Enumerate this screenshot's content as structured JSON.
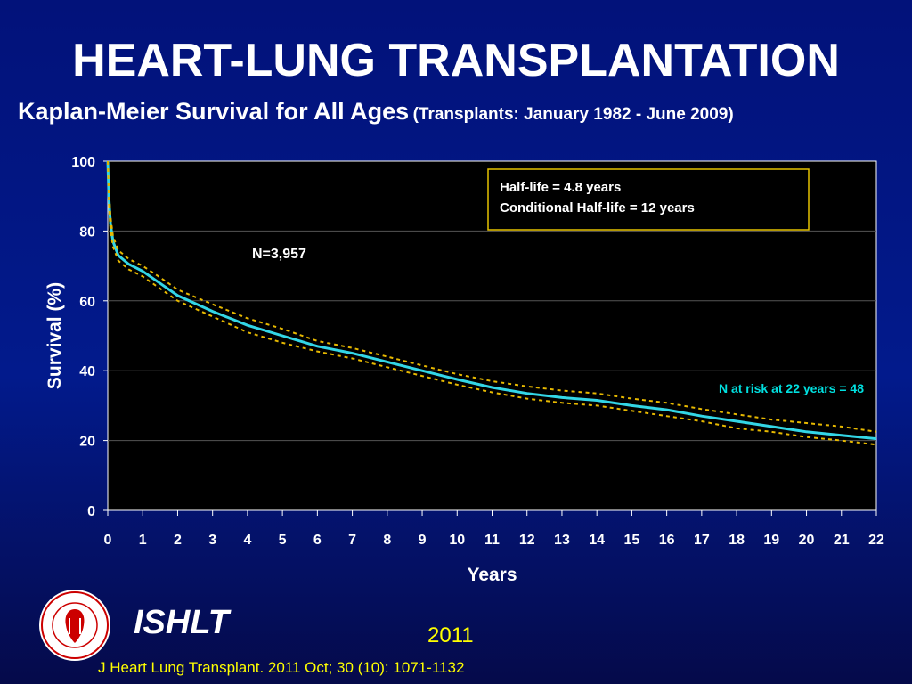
{
  "slide": {
    "title": "HEART-LUNG TRANSPLANTATION",
    "subtitle_main": "Kaplan-Meier Survival for All Ages",
    "subtitle_paren": "(Transplants: January 1982 - June 2009)",
    "org_name": "ISHLT",
    "year": "2011",
    "citation": "J Heart Lung Transplant. 2011 Oct; 30 (10): 1071-1132",
    "logo_text": "INTERNATIONAL SOCIETY FOR HEART & LUNG TRANSPLANTATION",
    "colors": {
      "background": "#021a8c",
      "title": "#ffffff",
      "footer_text": "#ffff00",
      "survival_line": "#33d6e6",
      "ci_line": "#e6b800",
      "note_text": "#00e0e0"
    }
  },
  "chart_data": {
    "type": "line",
    "xlabel": "Years",
    "ylabel": "Survival (%)",
    "xlim": [
      0,
      22
    ],
    "ylim": [
      0,
      100
    ],
    "x_ticks": [
      "0",
      "1",
      "2",
      "3",
      "4",
      "5",
      "6",
      "7",
      "8",
      "9",
      "10",
      "11",
      "12",
      "13",
      "14",
      "15",
      "16",
      "17",
      "18",
      "19",
      "20",
      "21",
      "22"
    ],
    "y_ticks": [
      "0",
      "20",
      "40",
      "60",
      "80",
      "100"
    ],
    "grid": "horizontal",
    "annotations": {
      "half_life": "Half-life = 4.8 years",
      "conditional_half_life": "Conditional Half-life = 12 years",
      "n_total": "N=3,957",
      "n_at_risk": "N at risk at 22 years = 48"
    },
    "series": [
      {
        "role": "survival",
        "x": [
          0,
          0.03,
          0.08,
          0.15,
          0.3,
          0.6,
          1,
          1.5,
          2,
          3,
          4,
          5,
          6,
          7,
          8,
          9,
          10,
          11,
          12,
          13,
          14,
          15,
          16,
          17,
          18,
          19,
          20,
          21,
          22
        ],
        "values": [
          100,
          90,
          82,
          77,
          73,
          70.5,
          68.5,
          65,
          61.5,
          57,
          53,
          50,
          47,
          45,
          42.5,
          40,
          37.5,
          35.2,
          33.5,
          32.3,
          31.5,
          30,
          28.8,
          27,
          25.5,
          24,
          22.5,
          21.5,
          20.5
        ]
      },
      {
        "role": "upper_ci",
        "x": [
          0,
          0.03,
          0.08,
          0.15,
          0.3,
          0.6,
          1,
          1.5,
          2,
          3,
          4,
          5,
          6,
          7,
          8,
          9,
          10,
          11,
          12,
          13,
          14,
          15,
          16,
          17,
          18,
          19,
          20,
          21,
          22
        ],
        "values": [
          100,
          92,
          84,
          78.5,
          74.5,
          72,
          70,
          66.7,
          63.2,
          59,
          55,
          52,
          48.5,
          46.5,
          44,
          41.5,
          39,
          37,
          35.5,
          34.3,
          33.5,
          32,
          30.8,
          29,
          27.5,
          26,
          25,
          24,
          22.5
        ]
      },
      {
        "role": "lower_ci",
        "x": [
          0,
          0.03,
          0.08,
          0.15,
          0.3,
          0.6,
          1,
          1.5,
          2,
          3,
          4,
          5,
          6,
          7,
          8,
          9,
          10,
          11,
          12,
          13,
          14,
          15,
          16,
          17,
          18,
          19,
          20,
          21,
          22
        ],
        "values": [
          100,
          88,
          80,
          75.5,
          71.5,
          69,
          67,
          63.5,
          60,
          55.5,
          51,
          48,
          45.5,
          43.5,
          41,
          38.5,
          36,
          33.8,
          32,
          30.8,
          30,
          28.5,
          27,
          25.5,
          23.5,
          22.5,
          21,
          20,
          18.8
        ]
      }
    ]
  }
}
